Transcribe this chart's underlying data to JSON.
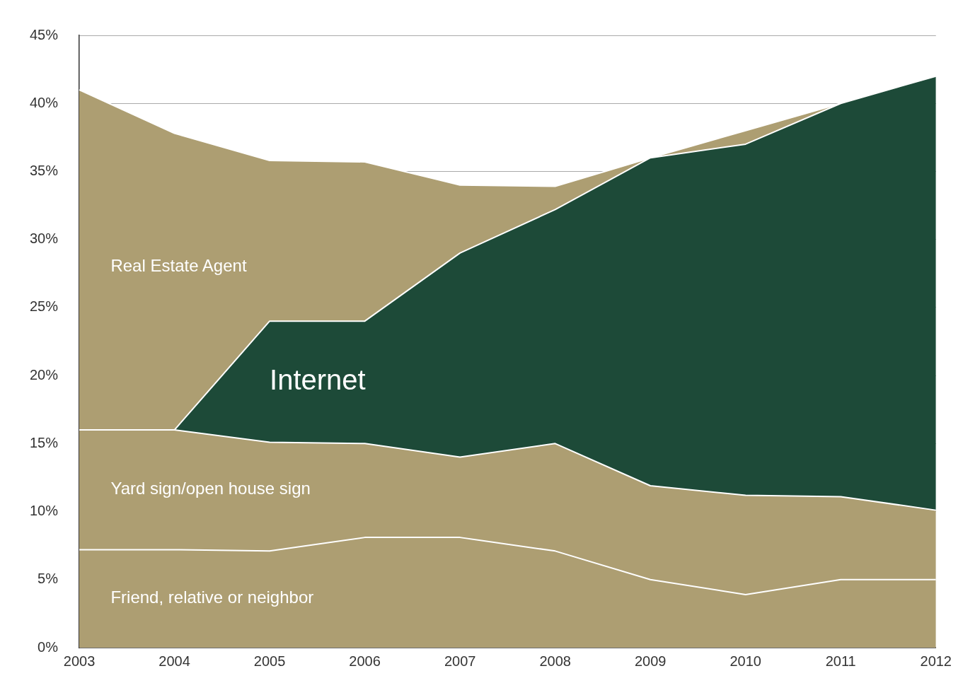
{
  "chart_data": {
    "type": "area",
    "stacked": true,
    "categories": [
      "2003",
      "2004",
      "2005",
      "2006",
      "2007",
      "2008",
      "2009",
      "2010",
      "2011",
      "2012"
    ],
    "ylim": [
      0,
      45
    ],
    "yticks": [
      {
        "value": 0,
        "label": "0%"
      },
      {
        "value": 5,
        "label": "5%"
      },
      {
        "value": 10,
        "label": "10%"
      },
      {
        "value": 15,
        "label": "15%"
      },
      {
        "value": 20,
        "label": "20%"
      },
      {
        "value": 25,
        "label": "25%"
      },
      {
        "value": 30,
        "label": "30%"
      },
      {
        "value": 35,
        "label": "35%"
      },
      {
        "value": 40,
        "label": "40%"
      },
      {
        "value": 45,
        "label": "45%"
      }
    ],
    "grid": "y",
    "legend": false,
    "series": [
      {
        "name": "Friend, relative or neighbor",
        "color": "#ad9e72",
        "values": [
          7.2,
          7.2,
          7.1,
          8.1,
          8.1,
          7.1,
          5.0,
          3.9,
          5.0,
          5.0
        ]
      },
      {
        "name": "Yard sign/open house sign",
        "color": "#ad9e72",
        "values": [
          8.8,
          8.8,
          8.0,
          6.9,
          5.9,
          7.9,
          6.9,
          7.3,
          6.1,
          5.1
        ]
      },
      {
        "name": "Internet",
        "color": "#1d4a38",
        "values": [
          0,
          0,
          8.9,
          9.0,
          15.0,
          17.2,
          24.1,
          25.8,
          28.9,
          31.9
        ]
      },
      {
        "name": "Real Estate Agent",
        "color": "#ad9e72",
        "values": [
          25.0,
          21.8,
          11.8,
          11.7,
          5.0,
          1.7,
          0,
          1.0,
          0,
          0
        ]
      }
    ]
  }
}
